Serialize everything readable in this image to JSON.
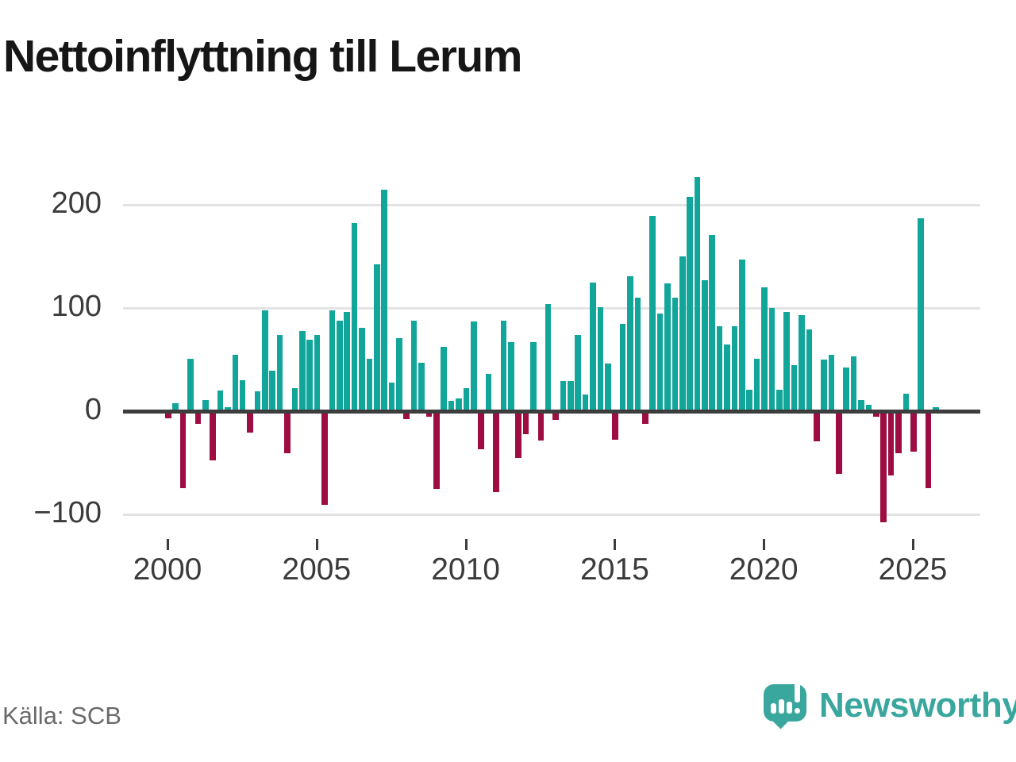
{
  "title": "Nettoinflyttning till Lerum",
  "source": "Källa: SCB",
  "branding": {
    "logo_text": "Newsworthy",
    "logo_icon": "bar-chart-speech-bubble-icon"
  },
  "colors": {
    "positive": "#12a69b",
    "negative": "#9e0d42",
    "zero_line": "#3d3d3d",
    "gridline": "#e3e3e3",
    "brand_teal": "#3aa79e"
  },
  "chart_data": {
    "type": "bar",
    "title": "Nettoinflyttning till Lerum",
    "xlabel": "",
    "ylabel": "",
    "grid": "horizontal",
    "ylim": [
      -125,
      245
    ],
    "y_ticks": [
      200,
      100,
      0,
      -100
    ],
    "y_tick_labels": [
      "200",
      "100",
      "0",
      "−100"
    ],
    "x_tick_years": [
      2000,
      2005,
      2010,
      2015,
      2020,
      2025
    ],
    "x": [
      "2000 Q1",
      "2000 Q2",
      "2000 Q3",
      "2000 Q4",
      "2001 Q1",
      "2001 Q2",
      "2001 Q3",
      "2001 Q4",
      "2002 Q1",
      "2002 Q2",
      "2002 Q3",
      "2002 Q4",
      "2003 Q1",
      "2003 Q2",
      "2003 Q3",
      "2003 Q4",
      "2004 Q1",
      "2004 Q2",
      "2004 Q3",
      "2004 Q4",
      "2005 Q1",
      "2005 Q2",
      "2005 Q3",
      "2005 Q4",
      "2006 Q1",
      "2006 Q2",
      "2006 Q3",
      "2006 Q4",
      "2007 Q1",
      "2007 Q2",
      "2007 Q3",
      "2007 Q4",
      "2008 Q1",
      "2008 Q2",
      "2008 Q3",
      "2008 Q4",
      "2009 Q1",
      "2009 Q2",
      "2009 Q3",
      "2009 Q4",
      "2010 Q1",
      "2010 Q2",
      "2010 Q3",
      "2010 Q4",
      "2011 Q1",
      "2011 Q2",
      "2011 Q3",
      "2011 Q4",
      "2012 Q1",
      "2012 Q2",
      "2012 Q3",
      "2012 Q4",
      "2013 Q1",
      "2013 Q2",
      "2013 Q3",
      "2013 Q4",
      "2014 Q1",
      "2014 Q2",
      "2014 Q3",
      "2014 Q4",
      "2015 Q1",
      "2015 Q2",
      "2015 Q3",
      "2015 Q4",
      "2016 Q1",
      "2016 Q2",
      "2016 Q3",
      "2016 Q4",
      "2017 Q1",
      "2017 Q2",
      "2017 Q3",
      "2017 Q4",
      "2018 Q1",
      "2018 Q2",
      "2018 Q3",
      "2018 Q4",
      "2019 Q1",
      "2019 Q2",
      "2019 Q3",
      "2019 Q4",
      "2020 Q1",
      "2020 Q2",
      "2020 Q3",
      "2020 Q4",
      "2021 Q1",
      "2021 Q2",
      "2021 Q3",
      "2021 Q4",
      "2022 Q1",
      "2022 Q2",
      "2022 Q3",
      "2022 Q4",
      "2023 Q1",
      "2023 Q2",
      "2023 Q3",
      "2023 Q4",
      "2024 Q1",
      "2024 Q2",
      "2024 Q3",
      "2024 Q4",
      "2025 Q1",
      "2025 Q2",
      "2025 Q3",
      "2025 Q4"
    ],
    "values": [
      -5,
      8,
      -73,
      51,
      -11,
      11,
      -46,
      20,
      4,
      55,
      30,
      -19,
      19,
      98,
      39,
      74,
      -39,
      22,
      78,
      69,
      74,
      -89,
      98,
      88,
      96,
      182,
      81,
      51,
      142,
      215,
      28,
      71,
      -6,
      88,
      47,
      -4,
      -74,
      62,
      10,
      12,
      22,
      87,
      -35,
      36,
      -77,
      88,
      67,
      -44,
      -21,
      67,
      -27,
      104,
      -7,
      29,
      29,
      74,
      16,
      125,
      101,
      46,
      -26,
      85,
      131,
      110,
      -11,
      189,
      95,
      124,
      110,
      150,
      208,
      227,
      127,
      171,
      82,
      65,
      82,
      147,
      21,
      51,
      120,
      100,
      21,
      96,
      45,
      93,
      79,
      -28,
      50,
      55,
      -59,
      42,
      53,
      11,
      6,
      -4,
      -106,
      -61,
      -39,
      17,
      -38,
      187,
      -73,
      4
    ],
    "legend": null,
    "positive_color": "#12a69b",
    "negative_color": "#9e0d42"
  }
}
